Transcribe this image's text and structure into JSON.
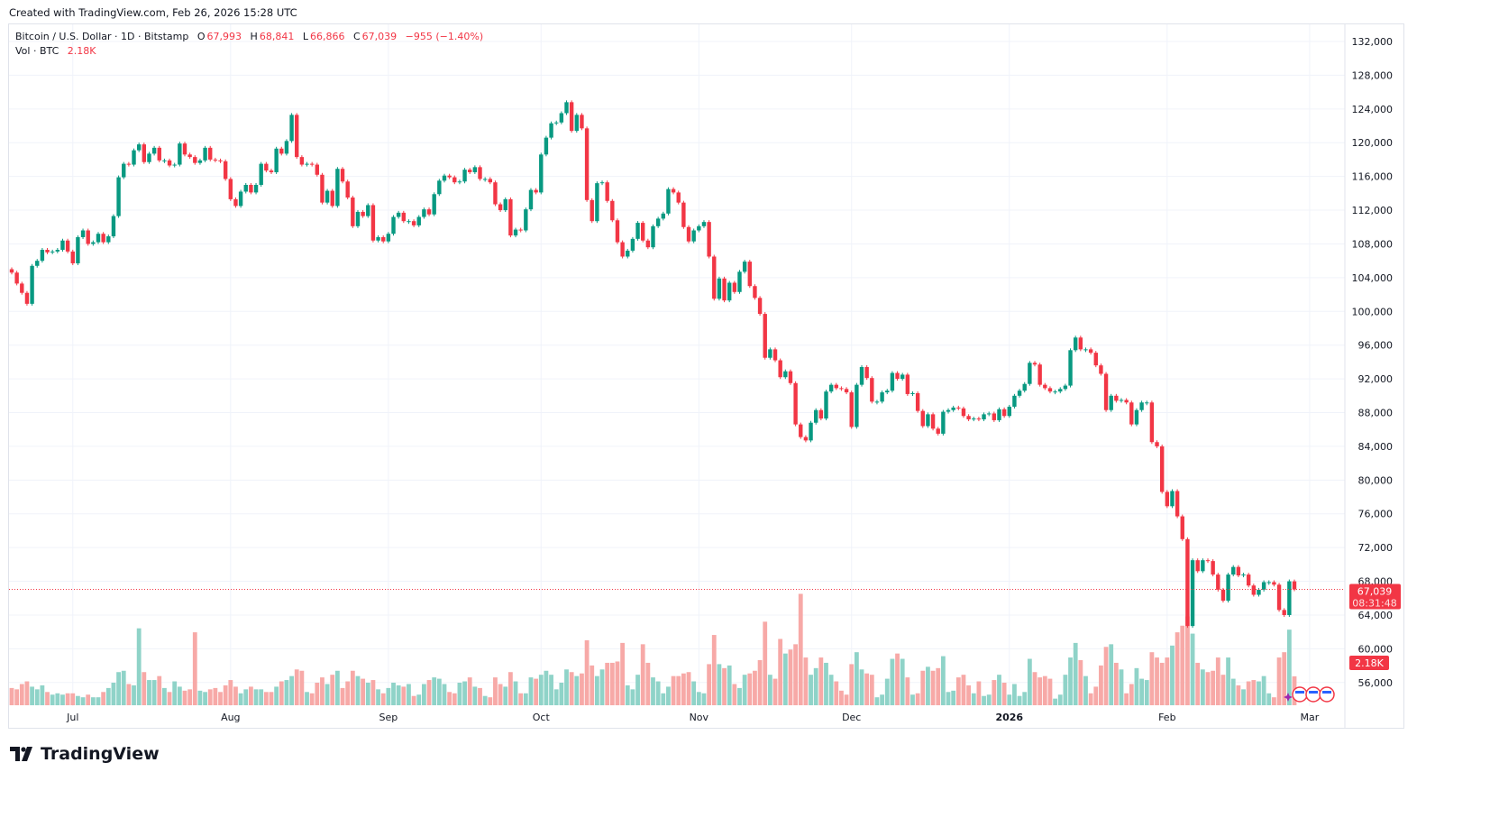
{
  "header": {
    "created": "Created with TradingView.com, Feb 26, 2026 15:28 UTC"
  },
  "legend": {
    "symbol": "Bitcoin / U.S. Dollar · 1D · Bitstamp",
    "o_label": "O",
    "o": "67,993",
    "h_label": "H",
    "h": "68,841",
    "l_label": "L",
    "l": "66,866",
    "c_label": "C",
    "c": "67,039",
    "change": "−955 (−1.40%)",
    "vol_label": "Vol · BTC",
    "vol": "2.18K"
  },
  "price_label": {
    "price": "67,039",
    "countdown": "08:31:48"
  },
  "volume_label": "2.18K",
  "brand": "TradingView",
  "colors": {
    "up": "#089981",
    "down": "#f23645",
    "vol_up": "#8fd3c8",
    "vol_down": "#f7a9a7",
    "grid": "#f0f3fa"
  },
  "chart_data": {
    "type": "candlestick",
    "interval": "1D",
    "x_range": [
      "2025-06-19",
      "2026-02-26"
    ],
    "ylim": [
      56000,
      132000
    ],
    "y_ticks": [
      "132,000",
      "128,000",
      "124,000",
      "120,000",
      "116,000",
      "112,000",
      "108,000",
      "104,000",
      "100,000",
      "96,000",
      "92,000",
      "88,000",
      "84,000",
      "80,000",
      "76,000",
      "72,000",
      "68,000",
      "64,000",
      "60,000",
      "56,000"
    ],
    "x_ticks": [
      {
        "label": "Jul",
        "date": "2025-07-01"
      },
      {
        "label": "Aug",
        "date": "2025-08-01"
      },
      {
        "label": "Sep",
        "date": "2025-09-01"
      },
      {
        "label": "Oct",
        "date": "2025-10-01"
      },
      {
        "label": "Nov",
        "date": "2025-11-01"
      },
      {
        "label": "Dec",
        "date": "2025-12-01"
      },
      {
        "label": "2026",
        "date": "2026-01-01"
      },
      {
        "label": "Feb",
        "date": "2026-02-01"
      },
      {
        "label": "Mar",
        "date": "2026-03-01"
      }
    ],
    "last_price": 67039,
    "last_open": 67993,
    "first_open": 105000,
    "close_k": [
      104.6,
      103.3,
      102.2,
      100.9,
      105.4,
      106.0,
      107.3,
      107.0,
      107.1,
      107.3,
      108.4,
      107.1,
      105.7,
      108.8,
      109.6,
      108.0,
      108.2,
      109.2,
      108.2,
      108.9,
      111.3,
      115.9,
      117.5,
      117.4,
      119.1,
      119.8,
      117.7,
      118.7,
      119.4,
      117.9,
      117.9,
      117.3,
      117.4,
      119.9,
      118.6,
      118.3,
      117.6,
      117.9,
      119.4,
      118.0,
      117.9,
      117.8,
      115.7,
      113.3,
      112.5,
      114.2,
      115.0,
      114.1,
      115.0,
      117.5,
      116.7,
      116.5,
      119.3,
      118.7,
      120.2,
      123.3,
      118.3,
      117.4,
      117.5,
      117.4,
      116.2,
      112.9,
      114.3,
      112.5,
      116.9,
      115.4,
      113.5,
      110.1,
      111.8,
      111.3,
      112.6,
      108.4,
      108.8,
      108.3,
      109.2,
      111.2,
      111.7,
      110.7,
      110.7,
      110.2,
      111.2,
      112.1,
      111.5,
      113.9,
      115.5,
      116.1,
      115.9,
      115.3,
      115.4,
      116.8,
      116.5,
      117.1,
      115.7,
      115.7,
      115.3,
      112.7,
      112.0,
      113.3,
      109.0,
      109.7,
      109.6,
      112.1,
      114.4,
      114.1,
      118.6,
      120.6,
      122.3,
      122.4,
      123.5,
      124.8,
      121.4,
      123.3,
      121.7,
      113.2,
      110.7,
      115.2,
      115.3,
      113.1,
      110.8,
      108.2,
      106.5,
      107.2,
      108.6,
      110.5,
      108.4,
      107.6,
      110.1,
      111.0,
      111.6,
      114.5,
      114.1,
      112.9,
      110.0,
      108.3,
      109.6,
      110.1,
      110.6,
      106.5,
      101.5,
      103.9,
      101.3,
      103.4,
      102.3,
      104.7,
      105.9,
      103.0,
      101.6,
      99.7,
      94.5,
      95.5,
      94.2,
      92.2,
      92.9,
      91.5,
      86.6,
      85.1,
      84.7,
      86.8,
      88.3,
      87.3,
      90.5,
      91.3,
      90.9,
      90.8,
      90.4,
      86.3,
      91.3,
      93.4,
      92.1,
      89.3,
      89.3,
      90.4,
      90.6,
      92.7,
      92.0,
      92.5,
      90.2,
      90.3,
      88.2,
      86.4,
      87.8,
      86.1,
      85.5,
      88.1,
      88.3,
      88.6,
      88.5,
      87.6,
      87.2,
      87.3,
      87.2,
      87.8,
      87.9,
      87.1,
      88.4,
      87.6,
      88.7,
      90.0,
      90.6,
      91.4,
      93.9,
      93.7,
      91.3,
      90.9,
      90.5,
      90.5,
      90.8,
      91.2,
      95.4,
      96.9,
      95.5,
      95.5,
      95.1,
      93.6,
      92.6,
      88.3,
      90.0,
      89.4,
      89.5,
      89.2,
      86.6,
      88.3,
      89.2,
      89.2,
      84.5,
      84.0,
      78.6,
      76.9,
      78.7,
      75.7,
      73.0,
      62.7,
      70.5,
      69.2,
      70.5,
      70.4,
      68.8,
      67.0,
      65.7,
      68.8,
      69.7,
      68.7,
      68.8,
      67.5,
      66.4,
      67.0,
      67.9,
      67.9,
      67.6,
      64.6,
      64.0,
      68.0,
      67.039
    ],
    "volume_k": [
      1.3,
      1.2,
      1.6,
      1.8,
      1.4,
      1.2,
      1.5,
      1.0,
      0.8,
      0.9,
      0.8,
      0.9,
      0.9,
      0.7,
      0.6,
      0.8,
      0.6,
      0.6,
      1.0,
      1.3,
      1.7,
      2.5,
      2.6,
      1.6,
      1.5,
      5.8,
      2.5,
      1.9,
      1.9,
      2.2,
      1.3,
      1.0,
      1.8,
      1.4,
      1.1,
      1.2,
      5.5,
      1.1,
      1.0,
      1.2,
      1.3,
      1.0,
      1.5,
      1.9,
      1.4,
      0.9,
      1.2,
      1.4,
      1.2,
      1.2,
      1.0,
      1.0,
      1.4,
      1.8,
      1.9,
      2.2,
      2.7,
      2.6,
      1.0,
      0.9,
      1.7,
      2.1,
      1.6,
      2.3,
      2.6,
      1.3,
      1.8,
      2.6,
      2.2,
      2.0,
      1.7,
      1.9,
      1.2,
      0.9,
      1.3,
      1.7,
      1.5,
      1.4,
      1.6,
      0.7,
      0.8,
      1.6,
      1.9,
      2.1,
      2.0,
      1.6,
      1.0,
      0.9,
      1.7,
      1.8,
      2.1,
      1.4,
      1.3,
      0.7,
      0.6,
      2.1,
      1.6,
      1.4,
      2.5,
      1.8,
      0.9,
      0.9,
      2.1,
      2.0,
      2.3,
      2.6,
      2.3,
      1.2,
      1.7,
      2.7,
      2.5,
      2.2,
      2.4,
      4.9,
      3.0,
      2.2,
      2.7,
      3.2,
      3.2,
      3.3,
      4.7,
      1.5,
      1.2,
      2.3,
      4.6,
      3.2,
      2.1,
      1.8,
      0.9,
      1.4,
      2.2,
      2.2,
      2.4,
      2.5,
      1.8,
      1.0,
      0.9,
      3.1,
      5.3,
      3.1,
      2.8,
      3.0,
      1.6,
      1.3,
      2.3,
      2.4,
      2.6,
      3.4,
      6.3,
      2.3,
      2.0,
      5.0,
      3.9,
      4.2,
      4.6,
      8.4,
      3.6,
      2.3,
      2.8,
      3.6,
      3.2,
      2.3,
      1.8,
      1.1,
      0.8,
      3.1,
      4.0,
      2.7,
      2.4,
      2.3,
      0.6,
      0.8,
      2.0,
      3.5,
      3.9,
      3.5,
      2.1,
      0.8,
      0.9,
      2.6,
      2.9,
      2.6,
      2.8,
      3.7,
      1.0,
      1.1,
      2.1,
      2.3,
      1.5,
      0.9,
      1.8,
      0.7,
      0.8,
      1.9,
      2.3,
      1.7,
      0.8,
      1.6,
      0.7,
      1.0,
      3.5,
      2.5,
      2.1,
      2.2,
      2.0,
      0.5,
      0.8,
      2.3,
      3.6,
      4.7,
      3.4,
      2.2,
      0.9,
      1.4,
      3.0,
      4.4,
      4.6,
      3.2,
      2.7,
      0.9,
      1.6,
      2.8,
      2.0,
      1.9,
      4.0,
      3.6,
      3.2,
      3.6,
      4.5,
      5.5,
      6.0,
      6.7,
      5.4,
      3.2,
      2.7,
      2.5,
      2.6,
      3.6,
      2.3,
      3.6,
      2.0,
      1.5,
      1.2,
      1.8,
      1.9,
      1.8,
      2.2,
      0.9,
      0.6,
      3.6,
      4.0,
      5.7,
      2.18
    ],
    "grid": true
  }
}
